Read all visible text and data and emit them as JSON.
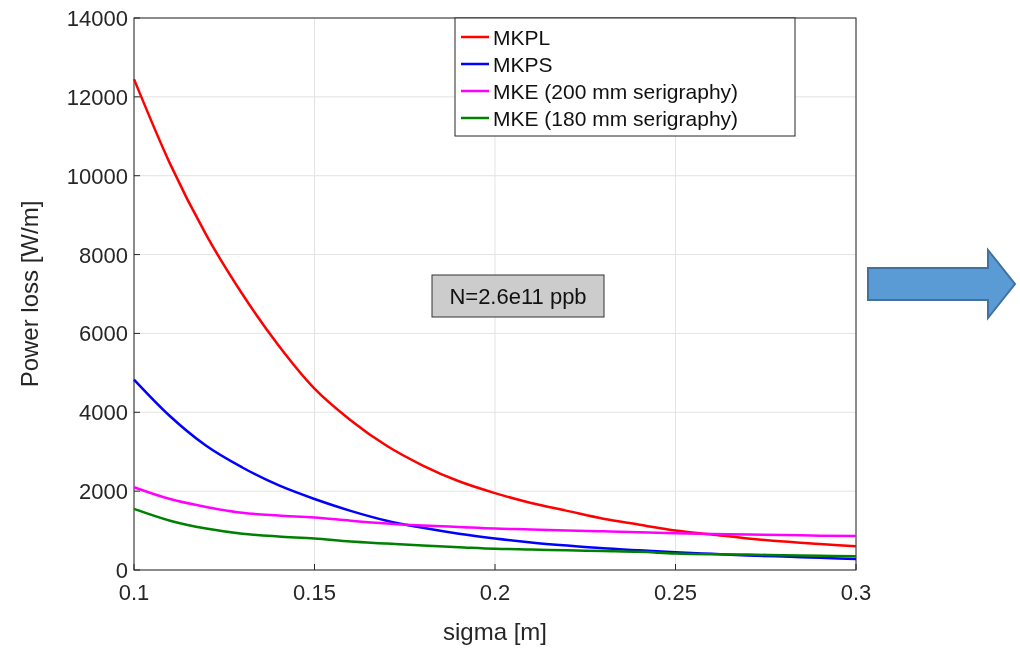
{
  "chart_data": {
    "type": "line",
    "xlabel": "sigma [m]",
    "ylabel": "Power loss [W/m]",
    "x": [
      0.1,
      0.11,
      0.12,
      0.13,
      0.14,
      0.15,
      0.16,
      0.17,
      0.18,
      0.19,
      0.2,
      0.21,
      0.22,
      0.23,
      0.24,
      0.25,
      0.26,
      0.27,
      0.28,
      0.29,
      0.3
    ],
    "series": [
      {
        "name": "MKPL",
        "color": "#ff0000",
        "values": [
          12450,
          10300,
          8500,
          7000,
          5700,
          4600,
          3800,
          3150,
          2650,
          2250,
          1950,
          1700,
          1500,
          1300,
          1150,
          1000,
          900,
          800,
          720,
          660,
          600
        ]
      },
      {
        "name": "MKPS",
        "color": "#0000ff",
        "values": [
          4830,
          3900,
          3150,
          2600,
          2150,
          1800,
          1500,
          1250,
          1070,
          920,
          800,
          700,
          620,
          550,
          500,
          450,
          410,
          370,
          340,
          310,
          280
        ]
      },
      {
        "name": "MKE (200 mm serigraphy)",
        "color": "#ff00ff",
        "values": [
          2100,
          1800,
          1600,
          1450,
          1380,
          1330,
          1250,
          1180,
          1130,
          1090,
          1050,
          1030,
          1000,
          980,
          960,
          930,
          910,
          900,
          890,
          870,
          860
        ]
      },
      {
        "name": "MKE (180 mm serigraphy)",
        "color": "#008000",
        "values": [
          1550,
          1250,
          1050,
          920,
          850,
          800,
          720,
          670,
          620,
          580,
          540,
          520,
          500,
          480,
          460,
          420,
          400,
          390,
          375,
          360,
          350
        ]
      }
    ],
    "xlim": [
      0.1,
      0.3
    ],
    "xticks": [
      0.1,
      0.15,
      0.2,
      0.25,
      0.3
    ],
    "ylim": [
      0,
      14000
    ],
    "yticks": [
      0,
      2000,
      4000,
      6000,
      8000,
      10000,
      12000,
      14000
    ],
    "grid": true,
    "legend": "top right",
    "annotations": [
      "N=2.6e11 ppb"
    ]
  }
}
